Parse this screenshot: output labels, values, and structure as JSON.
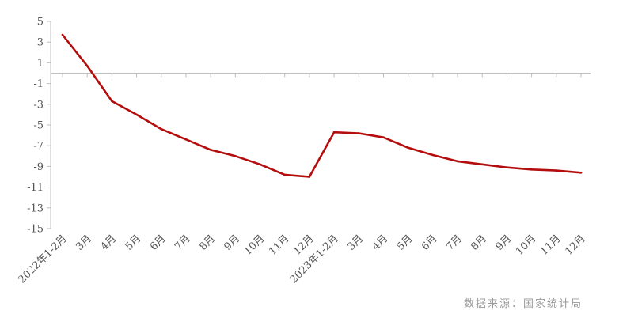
{
  "chart_data": {
    "type": "line",
    "categories": [
      "2022年1-2月",
      "3月",
      "4月",
      "5月",
      "6月",
      "7月",
      "8月",
      "9月",
      "10月",
      "11月",
      "12月",
      "2023年1-2月",
      "3月",
      "4月",
      "5月",
      "6月",
      "7月",
      "8月",
      "9月",
      "10月",
      "11月",
      "12月"
    ],
    "series": [
      {
        "values": [
          3.7,
          0.7,
          -2.7,
          -4.0,
          -5.4,
          -6.4,
          -7.4,
          -8.0,
          -8.8,
          -9.8,
          -10.0,
          -5.7,
          -5.8,
          -6.2,
          -7.2,
          -7.9,
          -8.5,
          -8.8,
          -9.1,
          -9.3,
          -9.4,
          -9.6
        ]
      }
    ],
    "ylim": [
      -15,
      5
    ],
    "yticks": [
      5,
      3,
      1,
      -1,
      -3,
      -5,
      -7,
      -9,
      -11,
      -13,
      -15
    ],
    "title": "",
    "xlabel": "",
    "ylabel": "",
    "line_color": "#b30d0d",
    "axis_color": "#bfbfbf"
  },
  "source_text": "数据来源：国家统计局"
}
